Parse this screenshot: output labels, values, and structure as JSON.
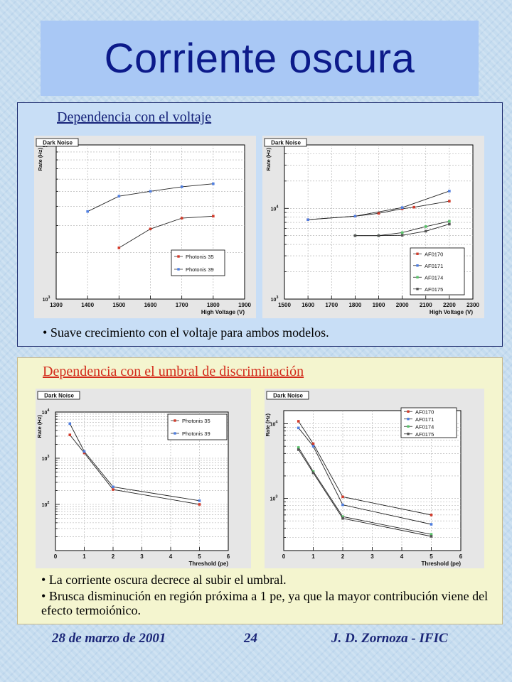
{
  "slide": {
    "title": "Corriente oscura",
    "section1": {
      "heading": "Dependencia con el voltaje",
      "bullet": "Suave crecimiento con el voltaje para ambos modelos."
    },
    "section2": {
      "heading": "Dependencia con el umbral de discriminación",
      "bullets": [
        "La corriente oscura decrece al subir el umbral.",
        "Brusca disminución en región próxima a 1 pe, ya que la mayor contribución viene del efecto termoiónico."
      ]
    },
    "footer": {
      "date": "28 de marzo de 2001",
      "page": "24",
      "author": "J. D. Zornoza - IFIC"
    }
  },
  "colors": {
    "title_text": "#0c1a8a",
    "heading1": "#16237a",
    "heading2": "#d32a1a",
    "series_red": "#d23a2a",
    "series_blue": "#4f7ee0",
    "series_green": "#59c46a",
    "series_gray": "#555555"
  },
  "chart_data": [
    {
      "type": "line",
      "title": "Dark Noise",
      "xlabel": "High Voltage (V)",
      "ylabel": "Rate (Hz)",
      "yscale": "log",
      "xlim": [
        1300,
        1900
      ],
      "ylim": [
        1000,
        10000
      ],
      "xticks": [
        "1300",
        "1400",
        "1500",
        "1600",
        "1700",
        "1800",
        "1900"
      ],
      "yticks": [
        {
          "value": 1000,
          "base": "10",
          "exp": "3"
        },
        {
          "value": 10000,
          "base": "10",
          "exp": "4"
        }
      ],
      "grid": true,
      "legend": "bottom-right",
      "series": [
        {
          "name": "Photonis 35",
          "color": "#d23a2a",
          "x": [
            1500,
            1600,
            1700,
            1800
          ],
          "y": [
            2150,
            2850,
            3350,
            3450
          ]
        },
        {
          "name": "Photonis 39",
          "color": "#4f7ee0",
          "x": [
            1400,
            1500,
            1600,
            1700,
            1800
          ],
          "y": [
            3700,
            4650,
            5000,
            5350,
            5600
          ]
        }
      ]
    },
    {
      "type": "line",
      "title": "Dark Noise",
      "xlabel": "High Voltage (V)",
      "ylabel": "Rate (Hz)",
      "yscale": "log",
      "xlim": [
        1500,
        2300
      ],
      "ylim": [
        1000,
        50000
      ],
      "xticks": [
        "1500",
        "1600",
        "1700",
        "1800",
        "1900",
        "2000",
        "2100",
        "2200",
        "2300"
      ],
      "yticks": [
        {
          "value": 1000,
          "base": "10",
          "exp": "3"
        },
        {
          "value": 10000,
          "base": "10",
          "exp": "4"
        }
      ],
      "grid": true,
      "legend": "bottom-right",
      "series": [
        {
          "name": "AF0170",
          "color": "#d23a2a",
          "x": [
            1600,
            1800,
            1900,
            2000,
            2050,
            2200
          ],
          "y": [
            7500,
            8200,
            8800,
            9900,
            10300,
            12000
          ]
        },
        {
          "name": "AF0171",
          "color": "#4f7ee0",
          "x": [
            1600,
            1800,
            2000,
            2200
          ],
          "y": [
            7500,
            8200,
            10200,
            15500
          ]
        },
        {
          "name": "AF0174",
          "color": "#59c46a",
          "x": [
            1800,
            1900,
            2000,
            2100,
            2200
          ],
          "y": [
            5000,
            5000,
            5400,
            6300,
            7200
          ]
        },
        {
          "name": "AF0175",
          "color": "#555555",
          "x": [
            1800,
            1900,
            2000,
            2100,
            2200
          ],
          "y": [
            5000,
            5000,
            5050,
            5600,
            6700
          ]
        }
      ]
    },
    {
      "type": "line",
      "title": "Dark Noise",
      "xlabel": "Threshold (pe)",
      "ylabel": "Rate (Hz)",
      "yscale": "log",
      "xlim": [
        0,
        6
      ],
      "ylim": [
        10,
        10000
      ],
      "xticks": [
        "0",
        "1",
        "2",
        "3",
        "4",
        "5",
        "6"
      ],
      "yticks": [
        {
          "value": 100,
          "base": "10",
          "exp": "2"
        },
        {
          "value": 1000,
          "base": "10",
          "exp": "3"
        },
        {
          "value": 10000,
          "base": "10",
          "exp": "4"
        }
      ],
      "grid": true,
      "legend": "top-right",
      "series": [
        {
          "name": "Photonis 35",
          "color": "#d23a2a",
          "x": [
            0.5,
            1,
            2,
            5
          ],
          "y": [
            3200,
            1300,
            210,
            100
          ]
        },
        {
          "name": "Photonis 39",
          "color": "#4f7ee0",
          "x": [
            0.5,
            1,
            2,
            5
          ],
          "y": [
            5600,
            1400,
            240,
            120
          ]
        }
      ]
    },
    {
      "type": "line",
      "title": "Dark Noise",
      "xlabel": "Threshold (pe)",
      "ylabel": "Rate (Hz)",
      "yscale": "log",
      "xlim": [
        0,
        6
      ],
      "ylim": [
        200,
        15000
      ],
      "xticks": [
        "0",
        "1",
        "2",
        "3",
        "4",
        "5",
        "6"
      ],
      "yticks": [
        {
          "value": 1000,
          "base": "10",
          "exp": "3"
        },
        {
          "value": 10000,
          "base": "10",
          "exp": "4"
        }
      ],
      "grid": true,
      "legend": "top-right",
      "series": [
        {
          "name": "AF0170",
          "color": "#d23a2a",
          "x": [
            0.5,
            1,
            2,
            5
          ],
          "y": [
            10800,
            5400,
            1050,
            600
          ]
        },
        {
          "name": "AF0171",
          "color": "#4f7ee0",
          "x": [
            0.5,
            1,
            2,
            5
          ],
          "y": [
            8800,
            5000,
            820,
            450
          ]
        },
        {
          "name": "AF0174",
          "color": "#59c46a",
          "x": [
            0.5,
            1,
            2,
            5
          ],
          "y": [
            4800,
            2300,
            570,
            330
          ]
        },
        {
          "name": "AF0175",
          "color": "#555555",
          "x": [
            0.5,
            1,
            2,
            5
          ],
          "y": [
            4500,
            2200,
            540,
            310
          ]
        }
      ]
    }
  ]
}
